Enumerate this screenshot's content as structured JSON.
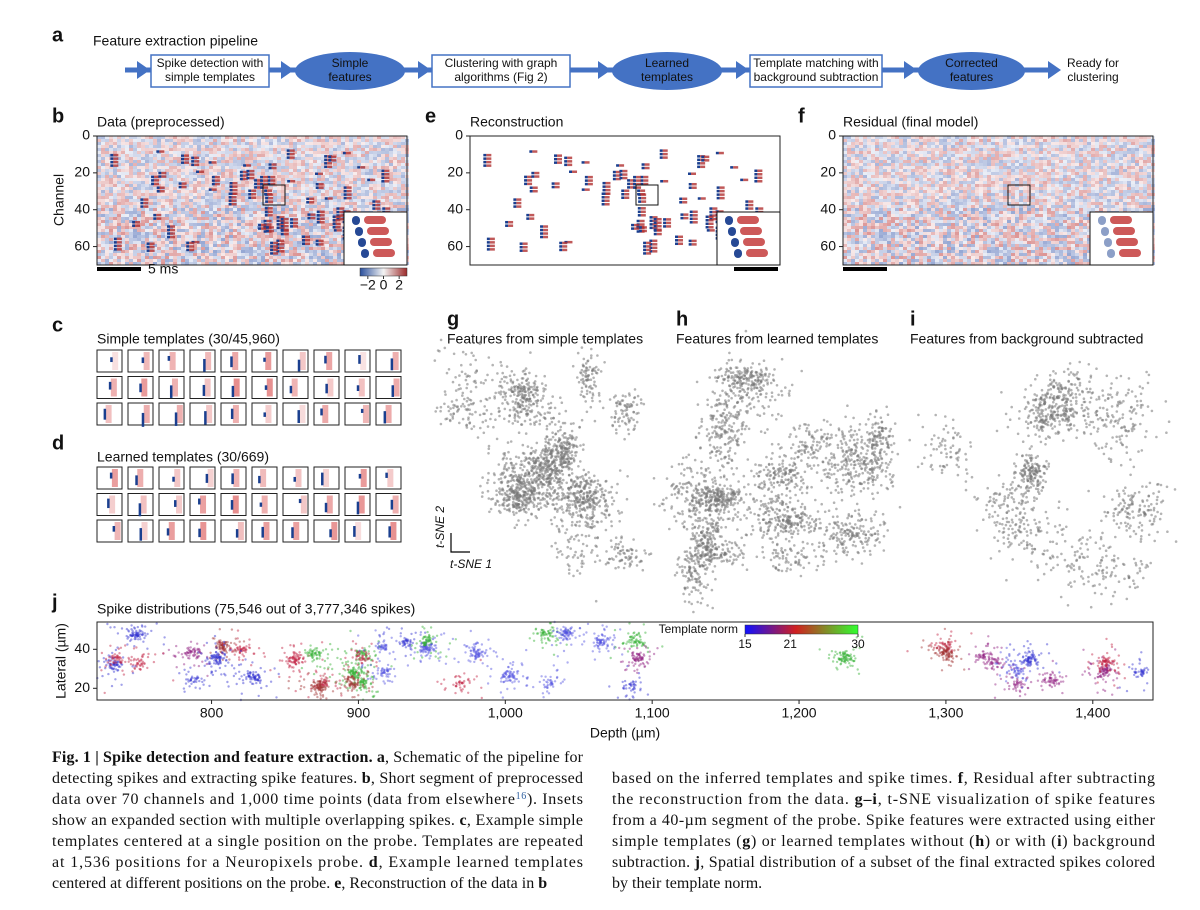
{
  "a": {
    "label": "a",
    "title": "Feature extraction pipeline",
    "steps": [
      [
        "Spike detection with",
        "simple templates"
      ],
      [
        "Simple",
        "features"
      ],
      [
        "Clustering with graph",
        "algorithms (Fig 2)"
      ],
      [
        "Learned",
        "templates"
      ],
      [
        "Template matching with",
        "background subtraction"
      ],
      [
        "Corrected",
        "features"
      ],
      [
        "Ready for",
        "clustering"
      ]
    ]
  },
  "b": {
    "label": "b",
    "title": "Data (preprocessed)",
    "ylabel": "Channel",
    "ylim": [
      0,
      70
    ],
    "yticks": [
      0,
      20,
      40,
      60
    ],
    "scale_bar": "5 ms",
    "colorbar": {
      "clim": [
        -3,
        3
      ],
      "ticks": [
        {
          "value": -2,
          "label": "−2"
        },
        0,
        2
      ]
    }
  },
  "e": {
    "label": "e",
    "title": "Reconstruction",
    "ylim": [
      0,
      70
    ],
    "yticks": [
      0,
      20,
      40,
      60
    ]
  },
  "f": {
    "label": "f",
    "title": "Residual (final model)",
    "ylim": [
      0,
      70
    ],
    "yticks": [
      0,
      20,
      40,
      60
    ]
  },
  "c": {
    "label": "c",
    "title": "Simple templates (30/45,960)"
  },
  "d": {
    "label": "d",
    "title": "Learned templates (30/669)"
  },
  "g": {
    "label": "g",
    "title": "Features from simple templates",
    "axis_labels": [
      "t-SNE 2",
      "t-SNE 1"
    ]
  },
  "h": {
    "label": "h",
    "title": "Features from learned templates"
  },
  "i": {
    "label": "i",
    "title": "Features from background subtracted"
  },
  "j": {
    "label": "j",
    "title": "Spike distributions (75,546 out of 3,777,346 spikes)",
    "xlabel": "Depth (µm)",
    "ylabel": "Lateral (µm)",
    "xlim": [
      722,
      1441
    ],
    "xticks": [
      800,
      900,
      {
        "value": 1000,
        "label": "1,000"
      },
      {
        "value": 1100,
        "label": "1,100"
      },
      {
        "value": 1200,
        "label": "1,200"
      },
      {
        "value": 1300,
        "label": "1,300"
      },
      {
        "value": 1400,
        "label": "1,400"
      }
    ],
    "ylim": [
      14,
      54
    ],
    "yticks": [
      20,
      40
    ],
    "colorbar": {
      "title": "Template norm",
      "clim": [
        15,
        30
      ],
      "ticks": [
        15,
        21,
        30
      ]
    }
  },
  "caption": {
    "columns": [
      [
        [
          {
            "text": "Fig. 1 | Spike detection and feature extraction. a",
            "bold": true
          },
          ", Schematic of the pipeline for"
        ],
        [
          "detecting spikes and extracting spike features. ",
          {
            "text": "b",
            "bold": true
          },
          ", Short segment of preprocessed"
        ],
        [
          "data over 70 channels and 1,000 time points (data from elsewhere",
          {
            "text": "16",
            "sup": true
          },
          "). Insets"
        ],
        [
          "show an expanded section with multiple overlapping spikes. ",
          {
            "text": "c",
            "bold": true
          },
          ", Example simple"
        ],
        [
          "templates centered at a single position on the probe. Templates are repeated"
        ],
        [
          "at 1,536 positions for a Neuropixels probe. ",
          {
            "text": "d",
            "bold": true
          },
          ", Example learned templates"
        ],
        [
          "centered at different positions on the probe. ",
          {
            "text": "e",
            "bold": true
          },
          ", Reconstruction of the data in ",
          {
            "text": "b",
            "bold": true
          }
        ]
      ],
      [
        [
          "based on the inferred templates and spike times. ",
          {
            "text": "f",
            "bold": true
          },
          ", Residual after subtracting"
        ],
        [
          "the reconstruction from the data. ",
          {
            "text": "g–i",
            "bold": true
          },
          ", t-SNE visualization of spike features"
        ],
        [
          "from a 40-µm segment of the probe. Spike features were extracted using either"
        ],
        [
          "simple templates (",
          {
            "text": "g",
            "bold": true
          },
          ") or learned templates without (",
          {
            "text": "h",
            "bold": true
          },
          ") or with (",
          {
            "text": "i",
            "bold": true
          },
          ") background"
        ],
        [
          "subtraction. ",
          {
            "text": "j",
            "bold": true
          },
          ", Spatial distribution of a subset of the final extracted spikes colored"
        ],
        [
          "by their template norm."
        ]
      ]
    ]
  }
}
